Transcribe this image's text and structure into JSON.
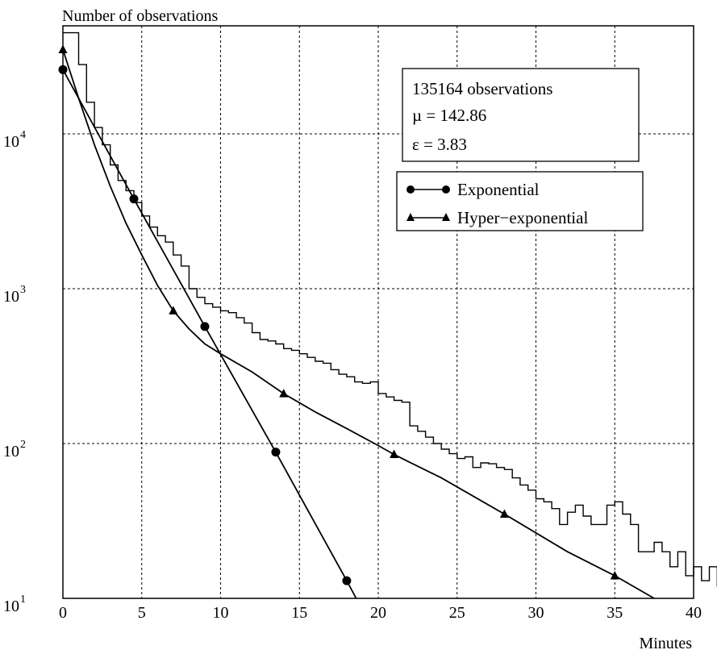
{
  "chart_data": {
    "type": "line",
    "ylabel": "Number of observations",
    "xlabel": "Minutes",
    "xlim": [
      0,
      40
    ],
    "ylim": [
      10,
      40000
    ],
    "y_scale": "log",
    "grid": true,
    "x_ticks": [
      0,
      5,
      10,
      15,
      20,
      25,
      30,
      35,
      40
    ],
    "x_tick_labels": [
      "0",
      "5",
      "10",
      "15",
      "20",
      "25",
      "30",
      "35",
      "40"
    ],
    "y_ticks": [
      {
        "value": 10,
        "base": "10",
        "exp": "1"
      },
      {
        "value": 100,
        "base": "10",
        "exp": "2"
      },
      {
        "value": 1000,
        "base": "10",
        "exp": "3"
      },
      {
        "value": 10000,
        "base": "10",
        "exp": "4"
      }
    ],
    "info_box": {
      "lines": [
        "135164 observations",
        "µ = 142.86",
        "ε = 3.83"
      ]
    },
    "legend_placement": "top-right",
    "histogram": {
      "bin_width": 0.5,
      "values": [
        45000,
        45000,
        28000,
        16000,
        11000,
        8500,
        6300,
        5000,
        4300,
        3600,
        2950,
        2500,
        2200,
        2000,
        1650,
        1400,
        1000,
        880,
        800,
        760,
        720,
        700,
        650,
        600,
        520,
        470,
        460,
        440,
        410,
        400,
        380,
        360,
        340,
        330,
        300,
        280,
        270,
        250,
        245,
        250,
        210,
        200,
        190,
        185,
        130,
        120,
        110,
        100,
        92,
        86,
        80,
        82,
        70,
        75,
        74,
        70,
        68,
        60,
        54,
        50,
        44,
        42,
        38,
        30,
        36,
        40,
        34,
        30,
        30,
        40,
        42,
        35,
        30,
        20,
        20,
        23,
        20,
        16,
        20,
        14,
        16,
        13,
        16,
        12,
        12,
        11,
        16,
        11,
        14,
        10
      ]
    },
    "series": [
      {
        "name": "Exponential",
        "marker": "circle",
        "x": [
          0,
          4.5,
          9,
          13.5,
          18
        ],
        "y": [
          26000,
          3800,
          570,
          88,
          13
        ],
        "curve_x": [
          0,
          4.5,
          9,
          13.5,
          18,
          18.6
        ],
        "curve_y": [
          26000,
          3800,
          570,
          88,
          13,
          10
        ]
      },
      {
        "name": "Hyper−exponential",
        "marker": "triangle",
        "x": [
          0,
          7,
          14,
          21,
          28,
          35
        ],
        "y": [
          35000,
          720,
          210,
          85,
          35,
          14
        ],
        "curve_x": [
          0,
          1,
          2,
          3,
          4,
          5,
          6,
          7,
          8,
          9,
          10,
          12,
          14,
          16,
          18,
          20,
          21,
          24,
          28,
          32,
          35,
          37.5
        ],
        "curve_y": [
          35000,
          17000,
          8500,
          4600,
          2650,
          1650,
          1050,
          720,
          550,
          440,
          380,
          290,
          210,
          160,
          125,
          97,
          85,
          60,
          35,
          20,
          14,
          10
        ]
      }
    ]
  }
}
